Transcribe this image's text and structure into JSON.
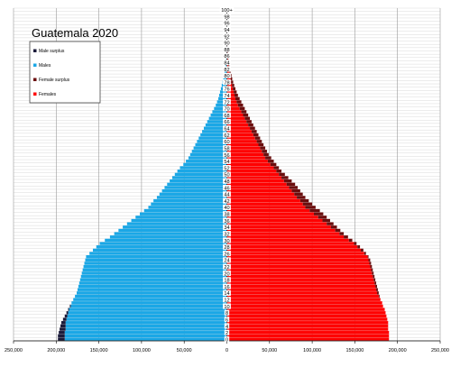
{
  "chart_data": {
    "type": "bar",
    "orientation": "horizontal",
    "title": "Guatemala 2020",
    "legend": {
      "placement": "top-left",
      "entries": [
        {
          "label": "Male surplus",
          "color": "#1b1b3a"
        },
        {
          "label": "Males",
          "color": "#1aa7e6"
        },
        {
          "label": "Female surplus",
          "color": "#6b0e0e"
        },
        {
          "label": "Females",
          "color": "#ff0000"
        }
      ]
    },
    "xlim": [
      -250000,
      250000
    ],
    "x_ticks": [
      -250000,
      -200000,
      -150000,
      -100000,
      -50000,
      0,
      50000,
      100000,
      150000,
      200000,
      250000
    ],
    "x_tick_labels": [
      "250,000",
      "200,000",
      "150,000",
      "100,000",
      "50,000",
      "0",
      "50,000",
      "100,000",
      "150,000",
      "200,000",
      "250,000"
    ],
    "ages": [
      0,
      1,
      2,
      3,
      4,
      5,
      6,
      7,
      8,
      9,
      10,
      11,
      12,
      13,
      14,
      15,
      16,
      17,
      18,
      19,
      20,
      21,
      22,
      23,
      24,
      25,
      26,
      27,
      28,
      29,
      30,
      31,
      32,
      33,
      34,
      35,
      36,
      37,
      38,
      39,
      40,
      41,
      42,
      43,
      44,
      45,
      46,
      47,
      48,
      49,
      50,
      51,
      52,
      53,
      54,
      55,
      56,
      57,
      58,
      59,
      60,
      61,
      62,
      63,
      64,
      65,
      66,
      67,
      68,
      69,
      70,
      71,
      72,
      73,
      74,
      75,
      76,
      77,
      78,
      79,
      80,
      81,
      82,
      83,
      84,
      85,
      86,
      87,
      88,
      89,
      90,
      91,
      92,
      93,
      94,
      95,
      96,
      97,
      98,
      99,
      100
    ],
    "age_labels": [
      "0",
      "2",
      "4",
      "6",
      "8",
      "10",
      "12",
      "14",
      "16",
      "18",
      "20",
      "22",
      "24",
      "26",
      "28",
      "30",
      "32",
      "34",
      "36",
      "38",
      "40",
      "42",
      "44",
      "46",
      "48",
      "50",
      "52",
      "54",
      "56",
      "58",
      "60",
      "62",
      "64",
      "66",
      "68",
      "70",
      "72",
      "74",
      "76",
      "78",
      "80",
      "82",
      "84",
      "86",
      "88",
      "90",
      "92",
      "94",
      "96",
      "98",
      "100+"
    ],
    "series": [
      {
        "name": "Males",
        "values": [
          198000,
          198000,
          197000,
          196000,
          195000,
          194000,
          192000,
          190000,
          188000,
          186000,
          184000,
          182000,
          180000,
          178000,
          176000,
          175000,
          174000,
          173000,
          172000,
          171000,
          170000,
          169000,
          168000,
          167000,
          166000,
          165000,
          161000,
          157000,
          153000,
          149000,
          143000,
          137000,
          132000,
          127000,
          122000,
          117000,
          112000,
          107000,
          102000,
          97000,
          92000,
          89000,
          86000,
          82000,
          79000,
          76000,
          73000,
          70000,
          67000,
          64000,
          61000,
          58000,
          55000,
          51000,
          48000,
          45000,
          43000,
          41000,
          39000,
          37000,
          35000,
          33000,
          31000,
          29000,
          27000,
          25000,
          23000,
          21000,
          19000,
          17000,
          15000,
          13000,
          11500,
          10000,
          9000,
          8000,
          7000,
          6000,
          5000,
          4200,
          3500,
          2800,
          2200,
          1700,
          1300,
          1000,
          800,
          600,
          400,
          300,
          200,
          150,
          100,
          70,
          50,
          30,
          20,
          10,
          5,
          3,
          2
        ]
      },
      {
        "name": "Females",
        "values": [
          190000,
          190000,
          190000,
          189000,
          189000,
          189000,
          188000,
          187000,
          186000,
          185000,
          183000,
          182000,
          180000,
          179000,
          178000,
          177000,
          176000,
          175000,
          174000,
          173000,
          172000,
          171000,
          170000,
          169000,
          168000,
          166000,
          163000,
          160000,
          156000,
          152000,
          147000,
          142000,
          137000,
          133000,
          129000,
          125000,
          121000,
          117000,
          113000,
          109000,
          104000,
          100000,
          96000,
          92000,
          89000,
          86000,
          83000,
          80000,
          76000,
          72000,
          68000,
          64000,
          61000,
          58000,
          55000,
          52000,
          49000,
          47000,
          45000,
          43000,
          41000,
          39000,
          37000,
          35000,
          33000,
          31000,
          29000,
          27000,
          25000,
          23000,
          21000,
          19000,
          17000,
          15000,
          13000,
          11500,
          10000,
          8600,
          7400,
          6300,
          5400,
          4500,
          3700,
          3000,
          2400,
          1900,
          1500,
          1100,
          800,
          600,
          400,
          300,
          200,
          140,
          90,
          60,
          40,
          25,
          15,
          10,
          5
        ]
      }
    ]
  }
}
